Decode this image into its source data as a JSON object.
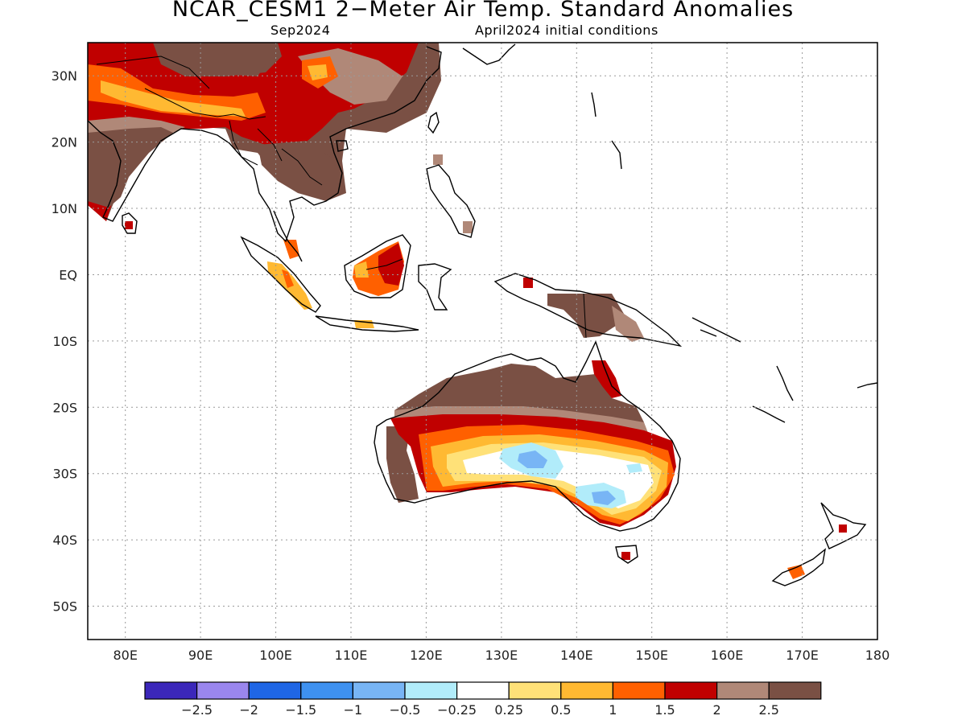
{
  "title": "NCAR_CESM1 2−Meter Air Temp. Standard Anomalies",
  "valid_month": "Sep2024",
  "init_conditions": "April2024 initial conditions",
  "map": {
    "region": "Indo-Pacific / Australia",
    "lon_range": [
      75,
      180
    ],
    "lat_range": [
      -55,
      35
    ],
    "lon_ticks": [
      {
        "value": 80,
        "label": "80E"
      },
      {
        "value": 90,
        "label": "90E"
      },
      {
        "value": 100,
        "label": "100E"
      },
      {
        "value": 110,
        "label": "110E"
      },
      {
        "value": 120,
        "label": "120E"
      },
      {
        "value": 130,
        "label": "130E"
      },
      {
        "value": 140,
        "label": "140E"
      },
      {
        "value": 150,
        "label": "150E"
      },
      {
        "value": 160,
        "label": "160E"
      },
      {
        "value": 170,
        "label": "170E"
      },
      {
        "value": 180,
        "label": "180"
      }
    ],
    "lat_ticks": [
      {
        "value": 30,
        "label": "30N"
      },
      {
        "value": 20,
        "label": "20N"
      },
      {
        "value": 10,
        "label": "10N"
      },
      {
        "value": 0,
        "label": "EQ"
      },
      {
        "value": -10,
        "label": "10S"
      },
      {
        "value": -20,
        "label": "20S"
      },
      {
        "value": -30,
        "label": "30S"
      },
      {
        "value": -40,
        "label": "40S"
      },
      {
        "value": -50,
        "label": "50S"
      }
    ],
    "grid": "dotted",
    "land_color": "#000000"
  },
  "colorbar": {
    "colors": [
      "#3b27ba",
      "#9a86ee",
      "#1f66e5",
      "#3e91f0",
      "#78b5f5",
      "#b1ecfa",
      "#ffffff",
      "#ffe178",
      "#ffb932",
      "#ff6000",
      "#c00000",
      "#b08878",
      "#7a5044"
    ],
    "labels": [
      "−2.5",
      "−2",
      "−1.5",
      "−1",
      "−0.5",
      "−0.25",
      "0.25",
      "0.5",
      "1",
      "1.5",
      "2",
      "2.5"
    ]
  }
}
